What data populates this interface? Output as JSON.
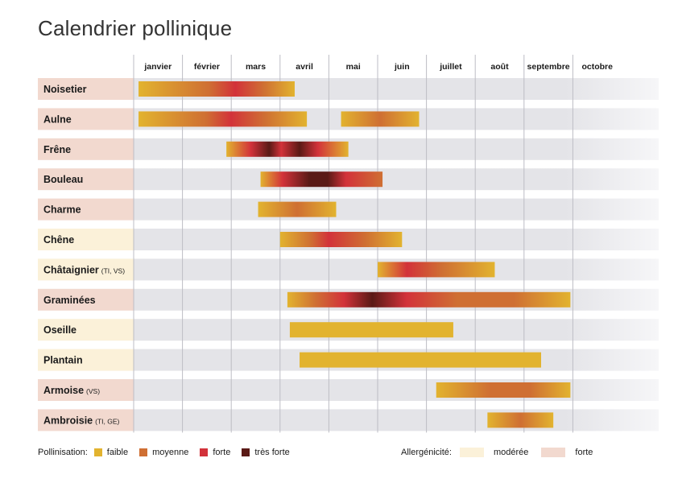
{
  "title": "Calendrier pollinique",
  "colors": {
    "faible": "#e2b32f",
    "moyenne": "#cf6f33",
    "forte": "#d2323a",
    "tres_forte": "#5a1a16",
    "allergenicite_moderee": "#fbf1d9",
    "allergenicite_forte": "#f2d9cf",
    "row_bg": "#e4e4e8",
    "grid_line": "#bdbdc4"
  },
  "legend": {
    "pollination_label": "Pollinisation:",
    "pollination_items": [
      {
        "label": "faible",
        "color_key": "faible"
      },
      {
        "label": "moyenne",
        "color_key": "moyenne"
      },
      {
        "label": "forte",
        "color_key": "forte"
      },
      {
        "label": "très forte",
        "color_key": "tres_forte"
      }
    ],
    "allergenicity_label": "Allergénicité:",
    "allergenicity_items": [
      {
        "label": "modérée",
        "color_key": "allergenicite_moderee"
      },
      {
        "label": "forte",
        "color_key": "allergenicite_forte"
      }
    ]
  },
  "chart_data": {
    "type": "bar",
    "title": "Calendrier pollinique",
    "months": [
      "janvier",
      "février",
      "mars",
      "avril",
      "mai",
      "juin",
      "juillet",
      "août",
      "septembre",
      "octobre"
    ],
    "x_unit": "month index (0 = début janvier)",
    "intensity_scale": [
      "faible",
      "moyenne",
      "forte",
      "très forte"
    ],
    "series": [
      {
        "name": "Noisetier",
        "note": "",
        "allergenicity": "forte",
        "bars": [
          {
            "start": 0.1,
            "end": 3.3,
            "stops": [
              [
                0,
                "faible"
              ],
              [
                0.45,
                "moyenne"
              ],
              [
                0.62,
                "forte"
              ],
              [
                0.8,
                "moyenne"
              ],
              [
                1,
                "faible"
              ]
            ]
          }
        ]
      },
      {
        "name": "Aulne",
        "note": "",
        "allergenicity": "forte",
        "bars": [
          {
            "start": 0.1,
            "end": 3.55,
            "stops": [
              [
                0,
                "faible"
              ],
              [
                0.4,
                "moyenne"
              ],
              [
                0.55,
                "forte"
              ],
              [
                0.75,
                "moyenne"
              ],
              [
                1,
                "faible"
              ]
            ]
          },
          {
            "start": 4.25,
            "end": 5.85,
            "stops": [
              [
                0,
                "faible"
              ],
              [
                0.5,
                "moyenne"
              ],
              [
                1,
                "faible"
              ]
            ]
          }
        ]
      },
      {
        "name": "Frêne",
        "note": "",
        "allergenicity": "forte",
        "bars": [
          {
            "start": 1.9,
            "end": 4.4,
            "stops": [
              [
                0,
                "faible"
              ],
              [
                0.2,
                "forte"
              ],
              [
                0.35,
                "tres_forte"
              ],
              [
                0.45,
                "forte"
              ],
              [
                0.6,
                "tres_forte"
              ],
              [
                0.75,
                "forte"
              ],
              [
                1,
                "faible"
              ]
            ]
          }
        ]
      },
      {
        "name": "Bouleau",
        "note": "",
        "allergenicity": "forte",
        "bars": [
          {
            "start": 2.6,
            "end": 5.1,
            "stops": [
              [
                0,
                "faible"
              ],
              [
                0.18,
                "forte"
              ],
              [
                0.4,
                "tres_forte"
              ],
              [
                0.55,
                "tres_forte"
              ],
              [
                0.7,
                "forte"
              ],
              [
                1,
                "moyenne"
              ]
            ]
          }
        ]
      },
      {
        "name": "Charme",
        "note": "",
        "allergenicity": "forte",
        "bars": [
          {
            "start": 2.55,
            "end": 4.15,
            "stops": [
              [
                0,
                "faible"
              ],
              [
                0.5,
                "moyenne"
              ],
              [
                1,
                "faible"
              ]
            ]
          }
        ]
      },
      {
        "name": "Chêne",
        "note": "",
        "allergenicity": "modérée",
        "bars": [
          {
            "start": 3.0,
            "end": 5.5,
            "stops": [
              [
                0,
                "faible"
              ],
              [
                0.25,
                "moyenne"
              ],
              [
                0.4,
                "forte"
              ],
              [
                0.7,
                "moyenne"
              ],
              [
                1,
                "faible"
              ]
            ]
          }
        ]
      },
      {
        "name": "Châtaignier",
        "note": "(TI, VS)",
        "allergenicity": "modérée",
        "bars": [
          {
            "start": 5.0,
            "end": 7.4,
            "stops": [
              [
                0,
                "faible"
              ],
              [
                0.25,
                "forte"
              ],
              [
                0.55,
                "moyenne"
              ],
              [
                1,
                "faible"
              ]
            ]
          }
        ]
      },
      {
        "name": "Graminées",
        "note": "",
        "allergenicity": "forte",
        "bars": [
          {
            "start": 3.15,
            "end": 8.95,
            "stops": [
              [
                0,
                "faible"
              ],
              [
                0.1,
                "moyenne"
              ],
              [
                0.2,
                "forte"
              ],
              [
                0.3,
                "tres_forte"
              ],
              [
                0.42,
                "forte"
              ],
              [
                0.6,
                "moyenne"
              ],
              [
                0.8,
                "moyenne"
              ],
              [
                1,
                "faible"
              ]
            ]
          }
        ]
      },
      {
        "name": "Oseille",
        "note": "",
        "allergenicity": "modérée",
        "bars": [
          {
            "start": 3.2,
            "end": 6.55,
            "stops": [
              [
                0,
                "faible"
              ],
              [
                1,
                "faible"
              ]
            ]
          }
        ]
      },
      {
        "name": "Plantain",
        "note": "",
        "allergenicity": "modérée",
        "bars": [
          {
            "start": 3.4,
            "end": 8.35,
            "stops": [
              [
                0,
                "faible"
              ],
              [
                1,
                "faible"
              ]
            ]
          }
        ]
      },
      {
        "name": "Armoise",
        "note": "(VS)",
        "allergenicity": "forte",
        "bars": [
          {
            "start": 6.2,
            "end": 8.95,
            "stops": [
              [
                0,
                "faible"
              ],
              [
                0.4,
                "moyenne"
              ],
              [
                0.7,
                "moyenne"
              ],
              [
                1,
                "faible"
              ]
            ]
          }
        ]
      },
      {
        "name": "Ambroisie",
        "note": "(TI, GE)",
        "allergenicity": "forte",
        "bars": [
          {
            "start": 7.25,
            "end": 8.6,
            "stops": [
              [
                0,
                "faible"
              ],
              [
                0.5,
                "moyenne"
              ],
              [
                1,
                "faible"
              ]
            ]
          }
        ]
      }
    ]
  }
}
